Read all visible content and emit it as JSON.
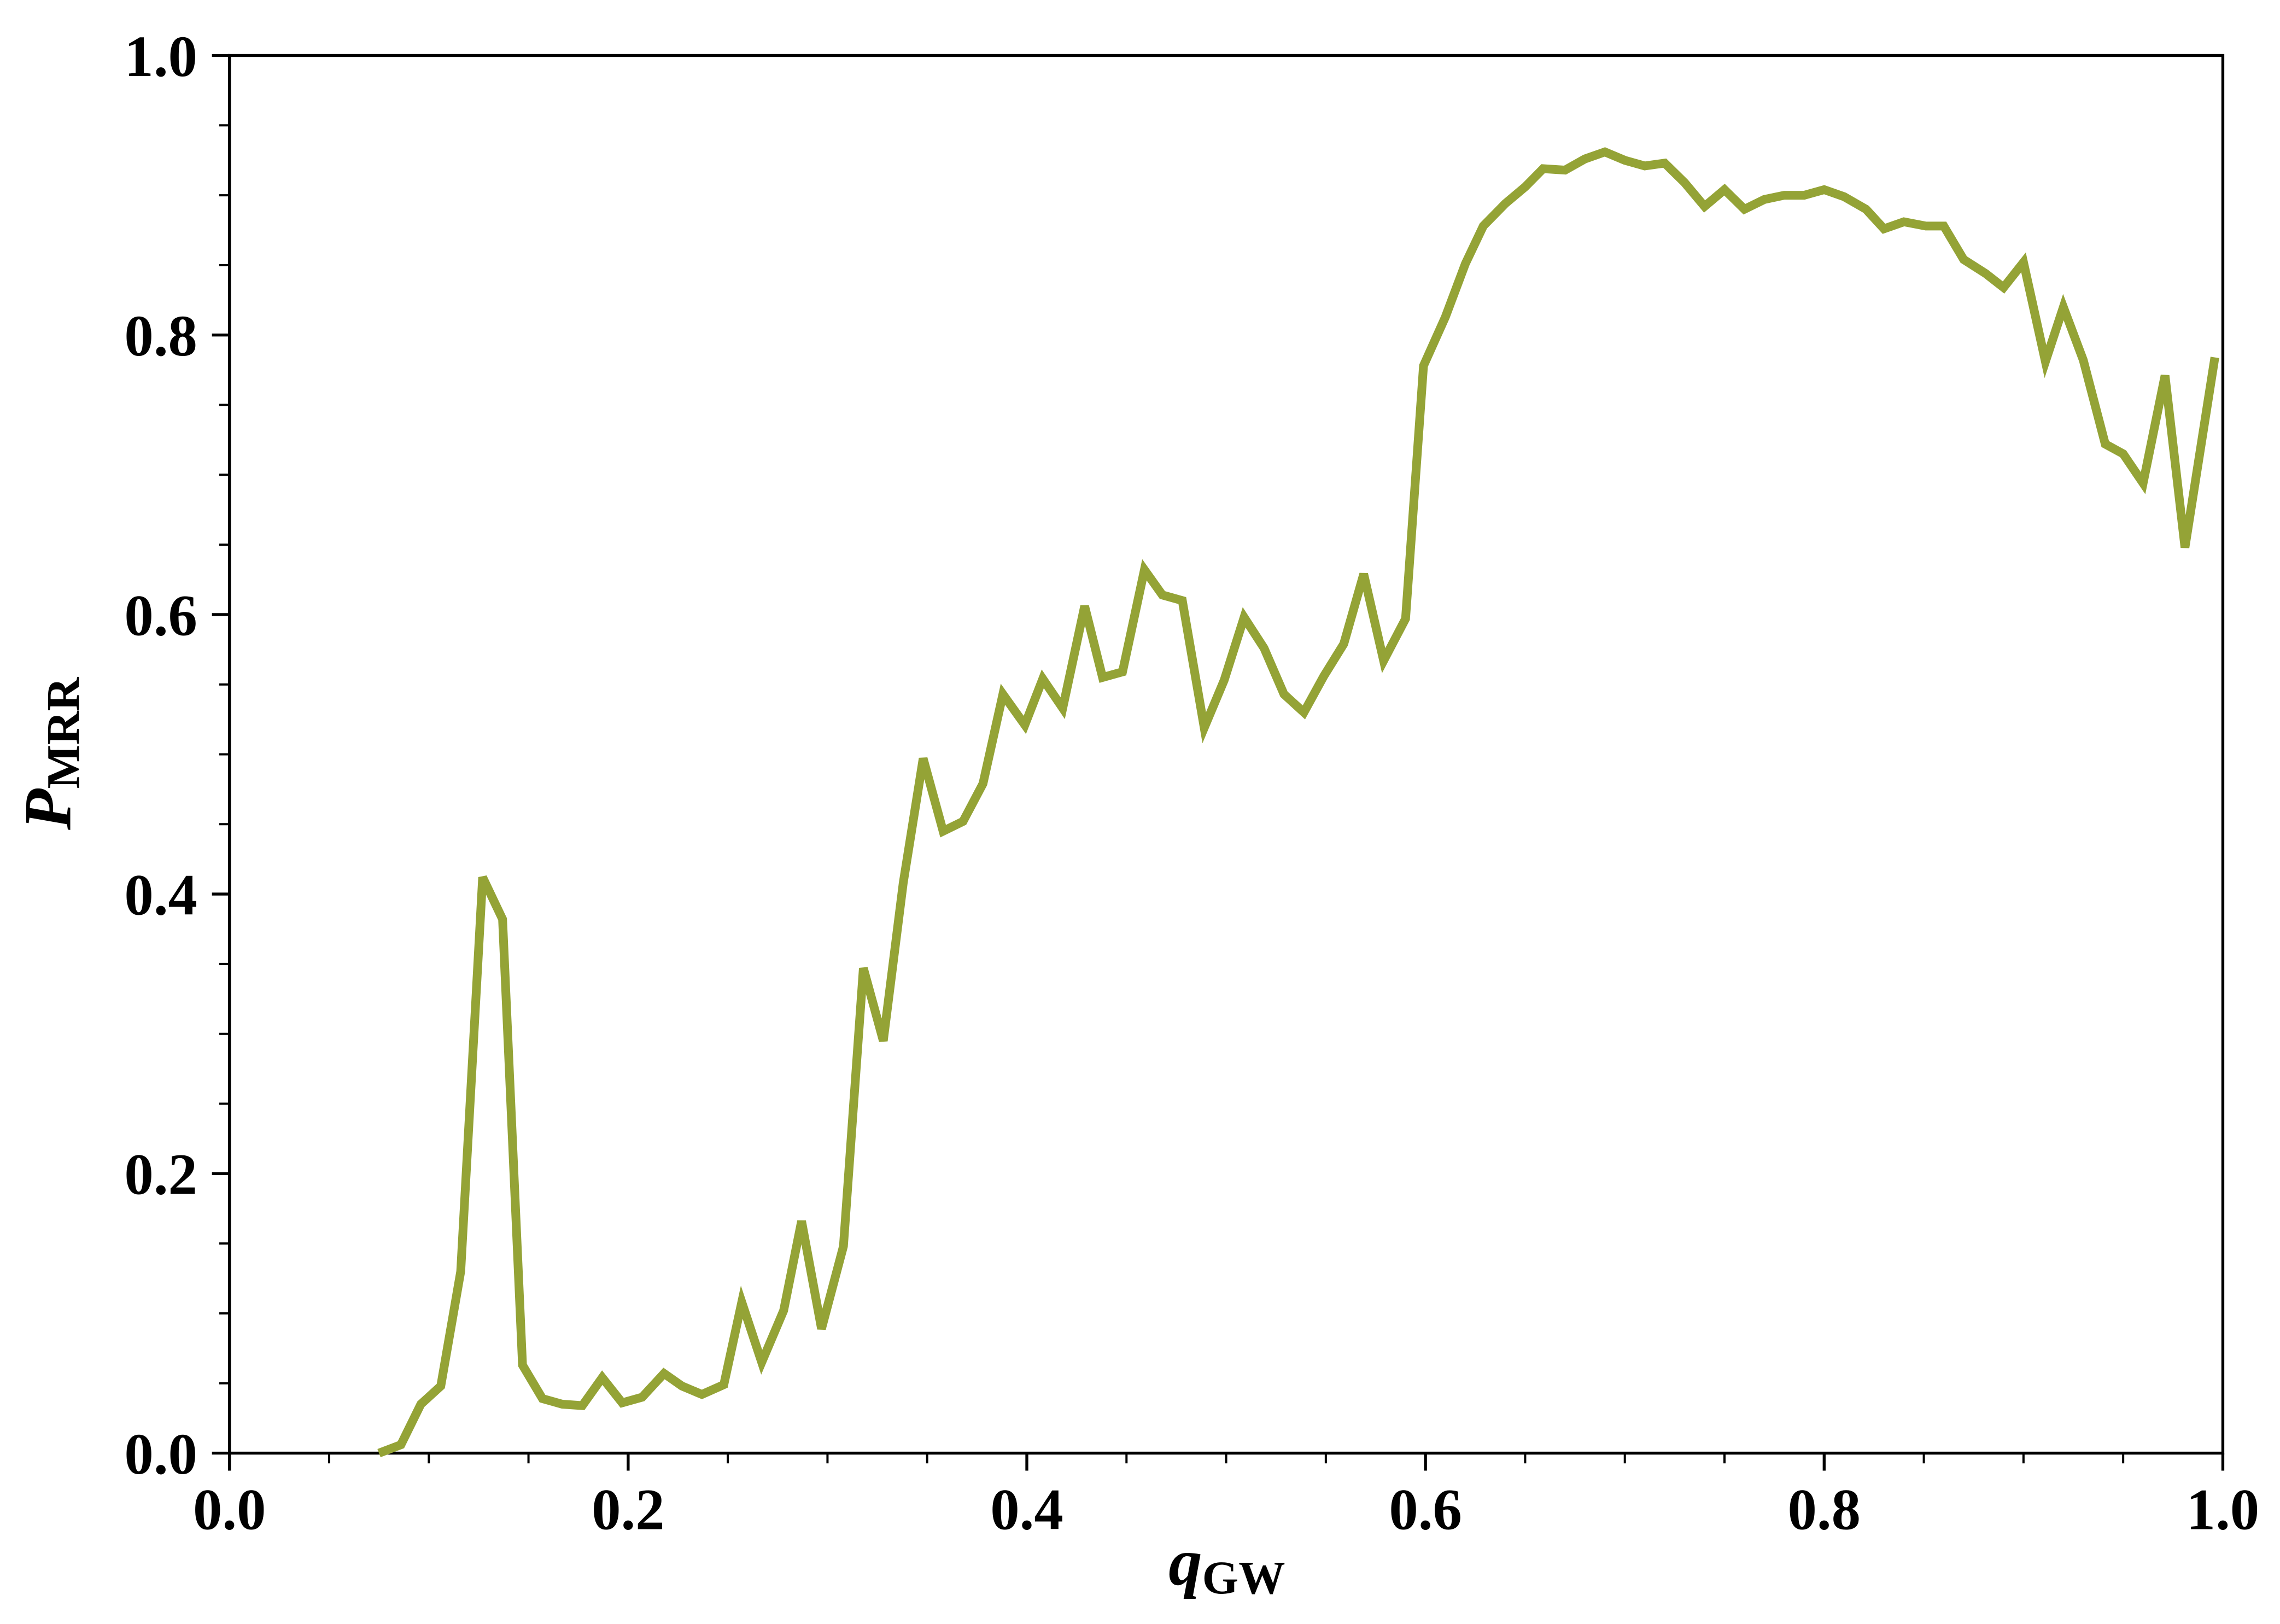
{
  "chart_data": {
    "type": "line",
    "x_label": "q",
    "x_label_subscript": "GW",
    "y_label": "P",
    "y_label_subscript": "MRR",
    "x": [
      0.075,
      0.086,
      0.096,
      0.106,
      0.116,
      0.127,
      0.137,
      0.147,
      0.157,
      0.167,
      0.177,
      0.187,
      0.197,
      0.207,
      0.218,
      0.227,
      0.237,
      0.248,
      0.257,
      0.267,
      0.278,
      0.287,
      0.297,
      0.308,
      0.318,
      0.328,
      0.338,
      0.348,
      0.358,
      0.368,
      0.378,
      0.388,
      0.399,
      0.408,
      0.418,
      0.429,
      0.438,
      0.448,
      0.459,
      0.468,
      0.478,
      0.489,
      0.499,
      0.509,
      0.519,
      0.529,
      0.539,
      0.549,
      0.559,
      0.569,
      0.579,
      0.59,
      0.599,
      0.61,
      0.62,
      0.629,
      0.64,
      0.65,
      0.659,
      0.67,
      0.68,
      0.69,
      0.7,
      0.71,
      0.72,
      0.73,
      0.74,
      0.75,
      0.76,
      0.77,
      0.78,
      0.79,
      0.8,
      0.81,
      0.821,
      0.83,
      0.84,
      0.851,
      0.86,
      0.87,
      0.881,
      0.89,
      0.9,
      0.911,
      0.92,
      0.93,
      0.941,
      0.95,
      0.96,
      0.971,
      0.981,
      0.996
    ],
    "series": [
      {
        "color": "#94a336",
        "values": [
          0.0,
          0.006,
          0.035,
          0.048,
          0.13,
          0.412,
          0.382,
          0.063,
          0.039,
          0.035,
          0.034,
          0.054,
          0.036,
          0.04,
          0.057,
          0.048,
          0.042,
          0.049,
          0.108,
          0.065,
          0.102,
          0.166,
          0.089,
          0.148,
          0.347,
          0.295,
          0.408,
          0.497,
          0.445,
          0.452,
          0.479,
          0.543,
          0.521,
          0.554,
          0.533,
          0.606,
          0.555,
          0.559,
          0.632,
          0.614,
          0.61,
          0.519,
          0.553,
          0.598,
          0.576,
          0.543,
          0.53,
          0.556,
          0.579,
          0.629,
          0.567,
          0.597,
          0.778,
          0.813,
          0.851,
          0.878,
          0.894,
          0.906,
          0.919,
          0.918,
          0.926,
          0.931,
          0.925,
          0.921,
          0.923,
          0.909,
          0.892,
          0.904,
          0.89,
          0.897,
          0.9,
          0.9,
          0.904,
          0.899,
          0.89,
          0.876,
          0.881,
          0.878,
          0.878,
          0.854,
          0.844,
          0.834,
          0.852,
          0.781,
          0.82,
          0.782,
          0.722,
          0.715,
          0.694,
          0.771,
          0.648,
          0.784
        ]
      }
    ],
    "xlim": [
      0,
      1
    ],
    "ylim": [
      0,
      1
    ],
    "xticks": [
      {
        "value": 0,
        "label": "0.0"
      },
      0.2,
      0.4,
      0.6,
      0.8,
      {
        "value": 1,
        "label": "1.0"
      }
    ],
    "yticks": [
      {
        "value": 0,
        "label": "0.0"
      },
      0.2,
      0.4,
      0.6,
      0.8,
      {
        "value": 1,
        "label": "1.0"
      }
    ],
    "xminorticks": [
      0.1,
      0.3,
      0.5,
      0.7,
      0.9,
      0.05,
      0.15,
      0.25,
      0.35,
      0.45,
      0.55,
      0.65,
      0.75,
      0.85,
      0.95
    ],
    "yminorticks": [
      0.1,
      0.3,
      0.5,
      0.7,
      0.9,
      0.05,
      0.15,
      0.25,
      0.35,
      0.45,
      0.55,
      0.65,
      0.75,
      0.85,
      0.95
    ]
  }
}
